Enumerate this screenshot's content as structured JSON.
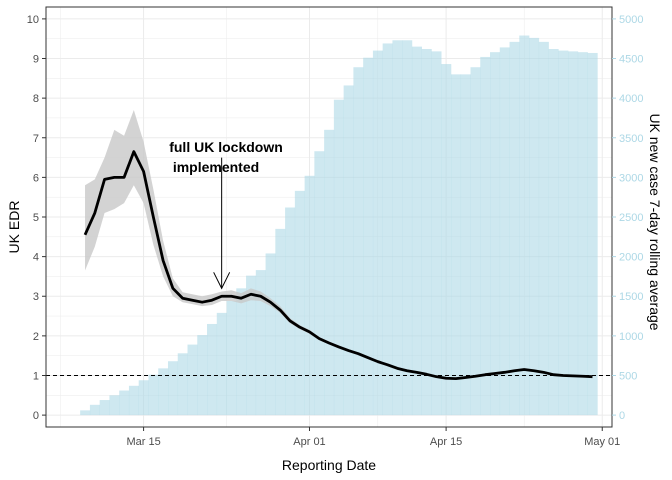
{
  "chart_data": {
    "type": "bar+line",
    "title": "",
    "xlabel": "Reporting Date",
    "ylabel_left": "UK EDR",
    "ylabel_right": "UK new case 7-day rolling average",
    "x_start_date": "2020-03-09",
    "x_end_date": "2020-04-30",
    "xlim": [
      "2020-03-05",
      "2020-05-02"
    ],
    "x_ticks": [
      {
        "date": "2020-03-15",
        "label": "Mar 15"
      },
      {
        "date": "2020-04-01",
        "label": "Apr 01"
      },
      {
        "date": "2020-04-15",
        "label": "Apr 15"
      },
      {
        "date": "2020-05-01",
        "label": "May 01"
      }
    ],
    "ylim_left": [
      -0.3,
      10.3
    ],
    "y_ticks_left": [
      0,
      1,
      2,
      3,
      4,
      5,
      6,
      7,
      8,
      9,
      10
    ],
    "ylim_right": [
      -150,
      5150
    ],
    "y_ticks_right": [
      0,
      500,
      1000,
      1500,
      2000,
      2500,
      3000,
      3500,
      4000,
      4500,
      5000
    ],
    "reference_line_y": 1,
    "grid": true,
    "colors": {
      "bars": "#add8e6",
      "line": "#000000",
      "ribbon": "#c8c8c8",
      "right_axis": "#add8e6",
      "grid": "#ebebeb",
      "panel_border": "#333333"
    },
    "series": [
      {
        "kind": "bar",
        "name": "UK new case 7-day rolling average",
        "axis": "right",
        "values": [
          60,
          130,
          190,
          250,
          310,
          370,
          440,
          510,
          590,
          680,
          780,
          890,
          1010,
          1150,
          1290,
          1440,
          1600,
          1760,
          1830,
          2040,
          2350,
          2620,
          2830,
          3020,
          3330,
          3600,
          3980,
          4160,
          4390,
          4510,
          4600,
          4690,
          4730,
          4730,
          4650,
          4620,
          4590,
          4430,
          4300,
          4300,
          4390,
          4520,
          4580,
          4640,
          4710,
          4790,
          4760,
          4710,
          4620,
          4600,
          4590,
          4580,
          4570
        ]
      },
      {
        "kind": "line",
        "name": "UK EDR",
        "axis": "left",
        "values": [
          4.55,
          5.1,
          5.95,
          6.0,
          6.0,
          6.65,
          6.15,
          5.0,
          3.9,
          3.2,
          2.95,
          2.9,
          2.85,
          2.9,
          3.0,
          3.0,
          2.95,
          3.05,
          3.0,
          2.85,
          2.65,
          2.38,
          2.22,
          2.1,
          1.93,
          1.82,
          1.72,
          1.63,
          1.55,
          1.45,
          1.35,
          1.27,
          1.18,
          1.12,
          1.08,
          1.03,
          0.97,
          0.93,
          0.92,
          0.95,
          0.98,
          1.02,
          1.05,
          1.08,
          1.12,
          1.15,
          1.12,
          1.08,
          1.02,
          1.0,
          0.99,
          0.98,
          0.97
        ]
      },
      {
        "kind": "ribbon",
        "name": "UK EDR interval",
        "axis": "left",
        "lower": [
          3.65,
          4.25,
          5.1,
          5.2,
          5.35,
          5.8,
          5.35,
          4.3,
          3.5,
          3.0,
          2.85,
          2.8,
          2.75,
          2.78,
          2.88,
          2.88,
          2.82,
          2.9,
          2.88,
          2.75,
          2.58,
          2.32,
          2.17,
          2.05,
          1.9,
          1.79,
          1.7,
          1.61,
          1.53,
          1.43,
          1.34,
          1.25,
          1.16,
          1.1,
          1.06,
          1.01,
          0.96,
          0.92,
          0.91,
          0.93,
          0.96,
          1.0,
          1.03,
          1.06,
          1.1,
          1.12,
          1.09,
          1.05,
          1.0,
          0.98,
          0.97,
          0.96,
          0.95
        ],
        "upper": [
          5.8,
          5.95,
          6.5,
          7.2,
          7.05,
          7.7,
          6.9,
          5.7,
          4.4,
          3.45,
          3.1,
          3.05,
          3.0,
          3.05,
          3.12,
          3.15,
          3.08,
          3.2,
          3.12,
          2.95,
          2.75,
          2.45,
          2.27,
          2.15,
          1.97,
          1.86,
          1.75,
          1.66,
          1.57,
          1.48,
          1.38,
          1.3,
          1.21,
          1.15,
          1.11,
          1.06,
          1.0,
          0.96,
          0.94,
          0.98,
          1.01,
          1.05,
          1.08,
          1.11,
          1.15,
          1.18,
          1.15,
          1.11,
          1.05,
          1.03,
          1.02,
          1.01,
          1.0
        ]
      }
    ],
    "annotation": {
      "lines": [
        "full UK lockdown",
        "implemented"
      ],
      "arrow_date": "2020-03-23",
      "arrow_from_y": 6.5,
      "arrow_to_y": 3.2
    }
  }
}
